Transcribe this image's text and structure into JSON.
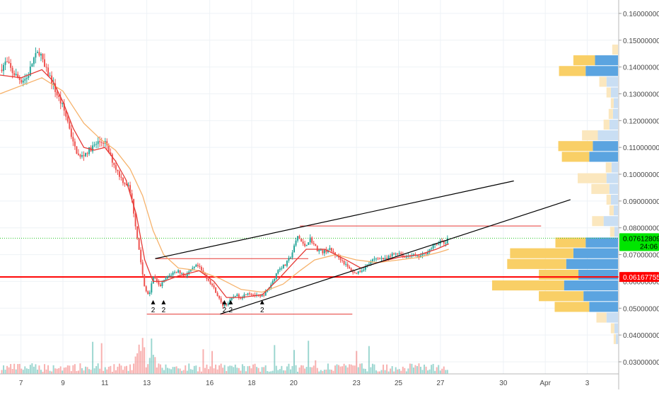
{
  "chart_data": {
    "type": "candlestick",
    "price_axis": {
      "labels": [
        "0.16000000",
        "0.15000000",
        "0.14000000",
        "0.13000000",
        "0.12000000",
        "0.11000000",
        "0.10000000",
        "0.09000000",
        "0.08000000",
        "0.07000000",
        "0.06000000",
        "0.05000000",
        "0.04000000",
        "0.03000000"
      ],
      "values": [
        0.16,
        0.15,
        0.14,
        0.13,
        0.12,
        0.11,
        0.1,
        0.09,
        0.08,
        0.07,
        0.06,
        0.05,
        0.04,
        0.03
      ],
      "range": [
        0.0255,
        0.165
      ]
    },
    "time_axis": {
      "labels": [
        "7",
        "9",
        "11",
        "13",
        "16",
        "18",
        "20",
        "23",
        "25",
        "27",
        "30",
        "Apr",
        "3"
      ],
      "days": [
        7,
        9,
        11,
        13,
        16,
        18,
        20,
        23,
        25,
        27,
        30,
        32,
        34
      ],
      "range": [
        6.0,
        35.5
      ]
    },
    "price_badges": [
      {
        "label": "0.07612809",
        "value": 0.07612809,
        "color": "#00e600",
        "text_color": "#000000"
      },
      {
        "label": "24:06",
        "value": 0.0732,
        "color": "#00e600",
        "text_color": "#000000"
      },
      {
        "label": "0.06167755",
        "value": 0.06167755,
        "color": "#ff0000",
        "text_color": "#ffffff"
      }
    ],
    "horizontal_levels": [
      {
        "value": 0.07612809,
        "color": "#26c826",
        "style": "dotted",
        "full_width": true
      },
      {
        "value": 0.06167755,
        "color": "#ff0000",
        "style": "solid",
        "full_width": true
      },
      {
        "value": 0.0807,
        "color": "#e53935",
        "x_start": 20.3,
        "x_end": 31.8
      },
      {
        "value": 0.0685,
        "color": "#e53935",
        "x_start": 13.4,
        "x_end": 20.7
      },
      {
        "value": 0.0478,
        "color": "#e53935",
        "x_start": 13.0,
        "x_end": 22.8
      }
    ],
    "trend_lines": [
      {
        "from": [
          13.4,
          0.0685
        ],
        "to": [
          30.5,
          0.0975
        ],
        "color": "#000000"
      },
      {
        "from": [
          16.5,
          0.0478
        ],
        "to": [
          33.2,
          0.0905
        ],
        "color": "#000000"
      }
    ],
    "markers": [
      {
        "day": 13.3,
        "label": "2"
      },
      {
        "day": 13.8,
        "label": "2"
      },
      {
        "day": 16.7,
        "label": "2"
      },
      {
        "day": 17.0,
        "label": "2"
      },
      {
        "day": 18.5,
        "label": "2"
      }
    ],
    "price_path": [
      [
        6.0,
        0.139
      ],
      [
        6.3,
        0.142
      ],
      [
        6.6,
        0.138
      ],
      [
        7.0,
        0.135
      ],
      [
        7.3,
        0.136
      ],
      [
        7.6,
        0.143
      ],
      [
        7.9,
        0.146
      ],
      [
        8.1,
        0.14
      ],
      [
        8.4,
        0.136
      ],
      [
        8.7,
        0.13
      ],
      [
        9.0,
        0.125
      ],
      [
        9.3,
        0.118
      ],
      [
        9.5,
        0.111
      ],
      [
        9.8,
        0.106
      ],
      [
        10.1,
        0.108
      ],
      [
        10.4,
        0.11
      ],
      [
        10.7,
        0.112
      ],
      [
        11.0,
        0.112
      ],
      [
        11.3,
        0.106
      ],
      [
        11.6,
        0.101
      ],
      [
        11.9,
        0.097
      ],
      [
        12.1,
        0.096
      ],
      [
        12.3,
        0.09
      ],
      [
        12.5,
        0.079
      ],
      [
        12.7,
        0.068
      ],
      [
        12.9,
        0.057
      ],
      [
        13.1,
        0.055
      ],
      [
        13.3,
        0.062
      ],
      [
        13.6,
        0.058
      ],
      [
        13.9,
        0.061
      ],
      [
        14.2,
        0.063
      ],
      [
        14.5,
        0.064
      ],
      [
        14.8,
        0.062
      ],
      [
        15.1,
        0.064
      ],
      [
        15.4,
        0.066
      ],
      [
        15.7,
        0.063
      ],
      [
        16.0,
        0.06
      ],
      [
        16.3,
        0.056
      ],
      [
        16.6,
        0.051
      ],
      [
        16.9,
        0.052
      ],
      [
        17.2,
        0.055
      ],
      [
        17.5,
        0.054
      ],
      [
        17.8,
        0.056
      ],
      [
        18.1,
        0.055
      ],
      [
        18.4,
        0.054
      ],
      [
        18.7,
        0.056
      ],
      [
        19.0,
        0.06
      ],
      [
        19.3,
        0.065
      ],
      [
        19.6,
        0.066
      ],
      [
        19.9,
        0.07
      ],
      [
        20.2,
        0.077
      ],
      [
        20.5,
        0.073
      ],
      [
        20.8,
        0.076
      ],
      [
        21.1,
        0.072
      ],
      [
        21.4,
        0.071
      ],
      [
        21.7,
        0.072
      ],
      [
        22.0,
        0.07
      ],
      [
        22.3,
        0.068
      ],
      [
        22.6,
        0.065
      ],
      [
        22.9,
        0.063
      ],
      [
        23.2,
        0.064
      ],
      [
        23.5,
        0.066
      ],
      [
        23.8,
        0.068
      ],
      [
        24.1,
        0.069
      ],
      [
        24.4,
        0.068
      ],
      [
        24.7,
        0.07
      ],
      [
        25.0,
        0.071
      ],
      [
        25.3,
        0.069
      ],
      [
        25.6,
        0.07
      ],
      [
        25.9,
        0.069
      ],
      [
        26.2,
        0.07
      ],
      [
        26.5,
        0.072
      ],
      [
        26.8,
        0.074
      ],
      [
        27.0,
        0.075
      ],
      [
        27.2,
        0.074
      ],
      [
        27.4,
        0.0761
      ]
    ],
    "ma_fast": [
      [
        6.0,
        0.137
      ],
      [
        7.0,
        0.136
      ],
      [
        8.0,
        0.139
      ],
      [
        8.5,
        0.135
      ],
      [
        9.0,
        0.127
      ],
      [
        9.5,
        0.117
      ],
      [
        10.0,
        0.11
      ],
      [
        10.5,
        0.109
      ],
      [
        11.0,
        0.11
      ],
      [
        11.5,
        0.105
      ],
      [
        12.0,
        0.098
      ],
      [
        12.5,
        0.085
      ],
      [
        12.9,
        0.068
      ],
      [
        13.3,
        0.06
      ],
      [
        13.8,
        0.06
      ],
      [
        14.5,
        0.062
      ],
      [
        15.5,
        0.064
      ],
      [
        16.2,
        0.06
      ],
      [
        16.8,
        0.054
      ],
      [
        17.5,
        0.054
      ],
      [
        18.5,
        0.055
      ],
      [
        19.3,
        0.061
      ],
      [
        20.0,
        0.067
      ],
      [
        20.6,
        0.072
      ],
      [
        21.5,
        0.072
      ],
      [
        22.5,
        0.068
      ],
      [
        23.2,
        0.065
      ],
      [
        24.0,
        0.067
      ],
      [
        25.0,
        0.069
      ],
      [
        26.0,
        0.07
      ],
      [
        26.8,
        0.072
      ],
      [
        27.4,
        0.074
      ]
    ],
    "ma_slow": [
      [
        6.0,
        0.13
      ],
      [
        7.0,
        0.133
      ],
      [
        8.0,
        0.136
      ],
      [
        9.0,
        0.131
      ],
      [
        10.0,
        0.119
      ],
      [
        10.8,
        0.113
      ],
      [
        11.5,
        0.109
      ],
      [
        12.2,
        0.102
      ],
      [
        12.8,
        0.092
      ],
      [
        13.3,
        0.079
      ],
      [
        13.8,
        0.07
      ],
      [
        14.5,
        0.065
      ],
      [
        15.5,
        0.064
      ],
      [
        16.5,
        0.061
      ],
      [
        17.5,
        0.057
      ],
      [
        18.5,
        0.056
      ],
      [
        19.5,
        0.059
      ],
      [
        20.3,
        0.064
      ],
      [
        21.0,
        0.068
      ],
      [
        22.0,
        0.07
      ],
      [
        23.0,
        0.068
      ],
      [
        24.0,
        0.067
      ],
      [
        25.0,
        0.068
      ],
      [
        26.0,
        0.069
      ],
      [
        27.0,
        0.071
      ],
      [
        27.4,
        0.072
      ]
    ],
    "volume_profile": [
      {
        "price": 0.1465,
        "up": 0.08,
        "down": 0.0
      },
      {
        "price": 0.1425,
        "up": 0.3,
        "down": 0.32
      },
      {
        "price": 0.1385,
        "up": 0.37,
        "down": 0.45
      },
      {
        "price": 0.1345,
        "up": 0.1,
        "down": 0.16
      },
      {
        "price": 0.1305,
        "up": 0.06,
        "down": 0.1
      },
      {
        "price": 0.1265,
        "up": 0.04,
        "down": 0.06
      },
      {
        "price": 0.1225,
        "up": 0.06,
        "down": 0.07
      },
      {
        "price": 0.1185,
        "up": 0.08,
        "down": 0.12
      },
      {
        "price": 0.1145,
        "up": 0.22,
        "down": 0.28
      },
      {
        "price": 0.1105,
        "up": 0.48,
        "down": 0.35
      },
      {
        "price": 0.1065,
        "up": 0.38,
        "down": 0.4
      },
      {
        "price": 0.1025,
        "up": 0.08,
        "down": 0.09
      },
      {
        "price": 0.0985,
        "up": 0.4,
        "down": 0.16
      },
      {
        "price": 0.0945,
        "up": 0.25,
        "down": 0.12
      },
      {
        "price": 0.0905,
        "up": 0.06,
        "down": 0.1
      },
      {
        "price": 0.0865,
        "up": 0.06,
        "down": 0.06
      },
      {
        "price": 0.0825,
        "up": 0.16,
        "down": 0.2
      },
      {
        "price": 0.0785,
        "up": 0.06,
        "down": 0.05
      },
      {
        "price": 0.0745,
        "up": 0.42,
        "down": 0.45
      },
      {
        "price": 0.0705,
        "up": 0.88,
        "down": 0.62
      },
      {
        "price": 0.0665,
        "up": 0.82,
        "down": 0.72
      },
      {
        "price": 0.0625,
        "up": 0.55,
        "down": 0.55
      },
      {
        "price": 0.0585,
        "up": 1.0,
        "down": 0.75
      },
      {
        "price": 0.0545,
        "up": 0.62,
        "down": 0.48
      },
      {
        "price": 0.0505,
        "up": 0.48,
        "down": 0.4
      },
      {
        "price": 0.0465,
        "up": 0.14,
        "down": 0.16
      },
      {
        "price": 0.0425,
        "up": 0.05,
        "down": 0.05
      },
      {
        "price": 0.0385,
        "up": 0.03,
        "down": 0.03
      }
    ],
    "grid": true,
    "colors": {
      "bull": "#26a69a",
      "bear": "#ef5350",
      "ma_fast": "#e53935",
      "ma_slow": "#f6b26b",
      "vp_up_strong": "#f9cf66",
      "vp_up_weak": "#fbe7be",
      "vp_down_strong": "#5ba4e0",
      "vp_down_weak": "#c9def3",
      "grid": "#eef2f6",
      "axis_text": "#4a4a4a"
    }
  }
}
